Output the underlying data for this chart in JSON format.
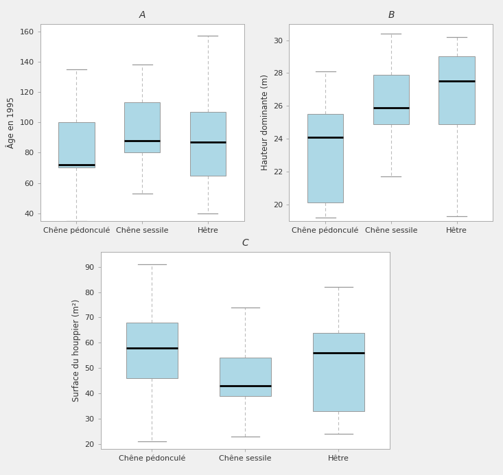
{
  "box_color": "#add8e6",
  "median_color": "#000000",
  "whisker_color": "#bbbbbb",
  "cap_color": "#999999",
  "box_edge_color": "#999999",
  "background_color": "#f0f0f0",
  "panel_background": "#ffffff",
  "categories": [
    "Chêne pédonculé",
    "Chêne sessile",
    "Hêtre"
  ],
  "plot_A": {
    "title": "A",
    "ylabel": "Âge en 1995",
    "ylim": [
      35,
      165
    ],
    "yticks": [
      40,
      60,
      80,
      100,
      120,
      140,
      160
    ],
    "boxes": [
      {
        "whislo": 35,
        "q1": 70,
        "med": 72,
        "q3": 100,
        "whishi": 135
      },
      {
        "whislo": 53,
        "q1": 80,
        "med": 88,
        "q3": 113,
        "whishi": 138
      },
      {
        "whislo": 40,
        "q1": 65,
        "med": 87,
        "q3": 107,
        "whishi": 157
      }
    ]
  },
  "plot_B": {
    "title": "B",
    "ylabel": "Hauteur dominante (m)",
    "ylim": [
      19,
      31
    ],
    "yticks": [
      20,
      22,
      24,
      26,
      28,
      30
    ],
    "boxes": [
      {
        "whislo": 19.2,
        "q1": 20.1,
        "med": 24.1,
        "q3": 25.5,
        "whishi": 28.1
      },
      {
        "whislo": 21.7,
        "q1": 24.9,
        "med": 25.9,
        "q3": 27.9,
        "whishi": 30.4
      },
      {
        "whislo": 19.3,
        "q1": 24.9,
        "med": 27.5,
        "q3": 29.0,
        "whishi": 30.2
      }
    ]
  },
  "plot_C": {
    "title": "C",
    "ylabel": "Surface du houppier (m²)",
    "ylim": [
      18,
      96
    ],
    "yticks": [
      20,
      30,
      40,
      50,
      60,
      70,
      80,
      90
    ],
    "boxes": [
      {
        "whislo": 21,
        "q1": 46,
        "med": 58,
        "q3": 68,
        "whishi": 91
      },
      {
        "whislo": 23,
        "q1": 39,
        "med": 43,
        "q3": 54,
        "whishi": 74
      },
      {
        "whislo": 24,
        "q1": 33,
        "med": 56,
        "q3": 64,
        "whishi": 82
      }
    ]
  }
}
